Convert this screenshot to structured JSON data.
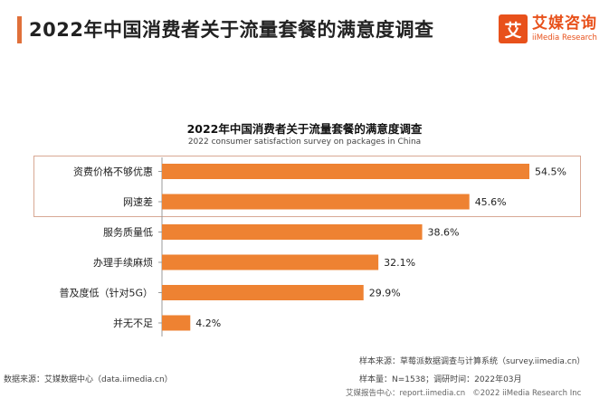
{
  "header": {
    "title": "2022年中国消费者关于流量套餐的满意度调查",
    "logo_mark": "艾",
    "logo_cn": "艾媒咨询",
    "logo_en": "iiMedia Research"
  },
  "chart_data": {
    "type": "bar",
    "orientation": "horizontal",
    "title": "2022年中国消费者关于流量套餐的满意度调查",
    "subtitle": "2022 consumer satisfaction survey on packages in China",
    "categories": [
      "资费价格不够优惠",
      "网速差",
      "服务质量低",
      "办理手续麻烦",
      "普及度低（针对5G）",
      "并无不足"
    ],
    "values": [
      54.5,
      45.6,
      38.6,
      32.1,
      29.9,
      4.2
    ],
    "value_labels": [
      "54.5%",
      "45.6%",
      "38.6%",
      "32.1%",
      "29.9%",
      "4.2%"
    ],
    "unit": "%",
    "highlighted_categories": [
      "资费价格不够优惠",
      "网速差"
    ],
    "bar_color": "#ee8232",
    "grid": false,
    "legend": "none"
  },
  "footer": {
    "data_source": "数据来源：艾媒数据中心（data.iimedia.cn）",
    "sample_source": "样本来源：草莓派数据调查与计算系统（survey.iimedia.cn）",
    "sample_size": "样本量：N=1538；调研时间：2022年03月",
    "report_center": "艾媒报告中心：report.iimedia.cn",
    "copyright": "©2022  iiMedia Research  Inc"
  }
}
